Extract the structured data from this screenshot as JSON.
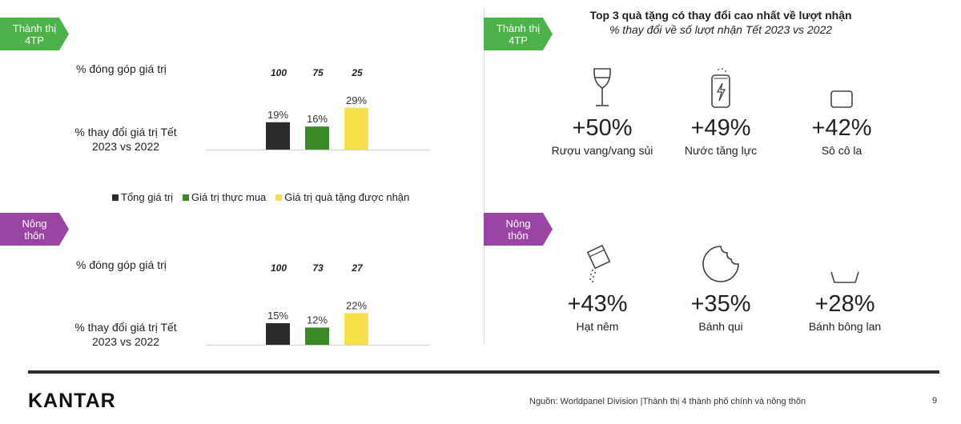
{
  "left": {
    "urban_tag": [
      "Thành thị",
      "4TP"
    ],
    "rural_tag": [
      "Nông",
      "thôn"
    ],
    "row1_label": "% đóng góp giá trị",
    "row2_label": [
      "% thay đổi giá trị Tết",
      "2023 vs 2022"
    ],
    "legend": [
      {
        "name": "Tổng giá trị",
        "color": "#2b2b2b"
      },
      {
        "name": "Giá trị thực mua",
        "color": "#3a8a27"
      },
      {
        "name": "Giá trị quà tặng được nhận",
        "color": "#f7e04b"
      }
    ]
  },
  "chart_data": [
    {
      "type": "bar",
      "panel": "Thành thị 4TP",
      "categories": [
        "Tổng giá trị",
        "Giá trị thực mua",
        "Giá trị quà tặng được nhận"
      ],
      "contribution": [
        "100",
        "75",
        "25"
      ],
      "values": [
        19,
        16,
        29
      ],
      "value_labels": [
        "19%",
        "16%",
        "29%"
      ],
      "colors": [
        "#2b2b2b",
        "#3a8a27",
        "#f7e04b"
      ],
      "ylim": [
        0,
        30
      ]
    },
    {
      "type": "bar",
      "panel": "Nông thôn",
      "categories": [
        "Tổng giá trị",
        "Giá trị thực mua",
        "Giá trị quà tặng được nhận"
      ],
      "contribution": [
        "100",
        "73",
        "27"
      ],
      "values": [
        15,
        12,
        22
      ],
      "value_labels": [
        "15%",
        "12%",
        "22%"
      ],
      "colors": [
        "#2b2b2b",
        "#3a8a27",
        "#f7e04b"
      ],
      "ylim": [
        0,
        30
      ]
    }
  ],
  "right": {
    "title": "Top 3 quà tặng có thay đổi cao nhất về lượt nhận",
    "subtitle": "% thay đổi về số lượt nhận Tết 2023 vs 2022",
    "urban_tag": [
      "Thành thị",
      "4TP"
    ],
    "rural_tag": [
      "Nông",
      "thôn"
    ],
    "urban_items": [
      {
        "pct": "+50%",
        "name": "Rượu vang/vang sủi",
        "icon": "wine-glass-icon"
      },
      {
        "pct": "+49%",
        "name": "Nước tăng lực",
        "icon": "energy-drink-can-icon"
      },
      {
        "pct": "+42%",
        "name": "Sô cô la",
        "icon": "chocolate-bar-icon"
      }
    ],
    "rural_items": [
      {
        "pct": "+43%",
        "name": "Hạt nêm",
        "icon": "seasoning-pour-icon"
      },
      {
        "pct": "+35%",
        "name": "Bánh qui",
        "icon": "cookie-icon"
      },
      {
        "pct": "+28%",
        "name": "Bánh bông lan",
        "icon": "sponge-cake-icon"
      }
    ]
  },
  "footer": {
    "logo": "KANTAR",
    "source": "Nguồn: Worldpanel Division |Thành thị 4 thành phố chính và nông thôn",
    "page": "9"
  }
}
